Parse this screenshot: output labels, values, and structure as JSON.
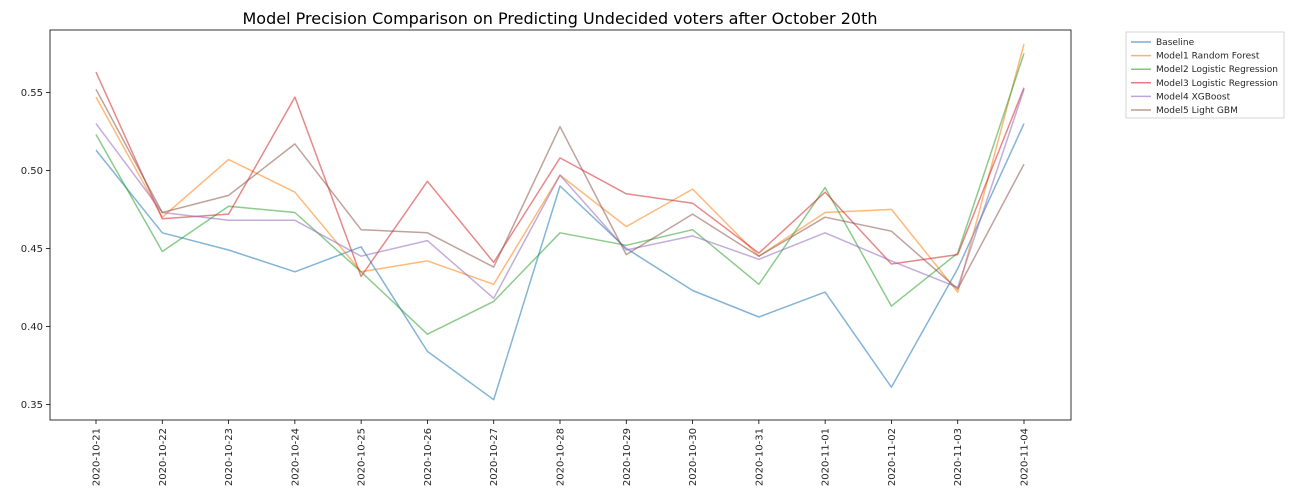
{
  "chart_data": {
    "type": "line",
    "title": "Model Precision Comparison on Predicting Undecided voters after October 20th",
    "xlabel": "",
    "ylabel": "",
    "ylim": [
      0.34,
      0.59
    ],
    "yticks": [
      "0.35",
      "0.40",
      "0.45",
      "0.50",
      "0.55"
    ],
    "grid": false,
    "legend_position": "outside-top-right",
    "categories": [
      "2020-10-21",
      "2020-10-22",
      "2020-10-23",
      "2020-10-24",
      "2020-10-25",
      "2020-10-26",
      "2020-10-27",
      "2020-10-28",
      "2020-10-29",
      "2020-10-30",
      "2020-10-31",
      "2020-11-01",
      "2020-11-02",
      "2020-11-03",
      "2020-11-04"
    ],
    "series": [
      {
        "name": "Baseline",
        "color": "#1f77b4",
        "values": [
          0.513,
          0.46,
          0.449,
          0.435,
          0.451,
          0.384,
          0.353,
          0.49,
          0.45,
          0.423,
          0.406,
          0.422,
          0.361,
          0.437,
          0.53
        ]
      },
      {
        "name": "Model1 Random Forest",
        "color": "#ff7f0e",
        "values": [
          0.547,
          0.47,
          0.507,
          0.486,
          0.435,
          0.442,
          0.427,
          0.497,
          0.464,
          0.488,
          0.445,
          0.473,
          0.475,
          0.422,
          0.581
        ]
      },
      {
        "name": "Model2 Logistic Regression",
        "color": "#2ca02c",
        "values": [
          0.523,
          0.448,
          0.477,
          0.473,
          0.435,
          0.395,
          0.416,
          0.46,
          0.452,
          0.462,
          0.427,
          0.489,
          0.413,
          0.447,
          0.575
        ]
      },
      {
        "name": "Model3 Logistic Regression",
        "color": "#d62728",
        "values": [
          0.563,
          0.469,
          0.472,
          0.547,
          0.432,
          0.493,
          0.441,
          0.508,
          0.485,
          0.479,
          0.447,
          0.486,
          0.44,
          0.446,
          0.553
        ]
      },
      {
        "name": "Model4 XGBoost",
        "color": "#9467bd",
        "values": [
          0.53,
          0.473,
          0.468,
          0.468,
          0.445,
          0.455,
          0.418,
          0.497,
          0.449,
          0.458,
          0.443,
          0.46,
          0.442,
          0.425,
          0.552
        ]
      },
      {
        "name": "Model5 Light GBM",
        "color": "#8c564b",
        "values": [
          0.552,
          0.473,
          0.484,
          0.517,
          0.462,
          0.46,
          0.438,
          0.528,
          0.446,
          0.472,
          0.445,
          0.47,
          0.461,
          0.424,
          0.504
        ]
      }
    ]
  }
}
